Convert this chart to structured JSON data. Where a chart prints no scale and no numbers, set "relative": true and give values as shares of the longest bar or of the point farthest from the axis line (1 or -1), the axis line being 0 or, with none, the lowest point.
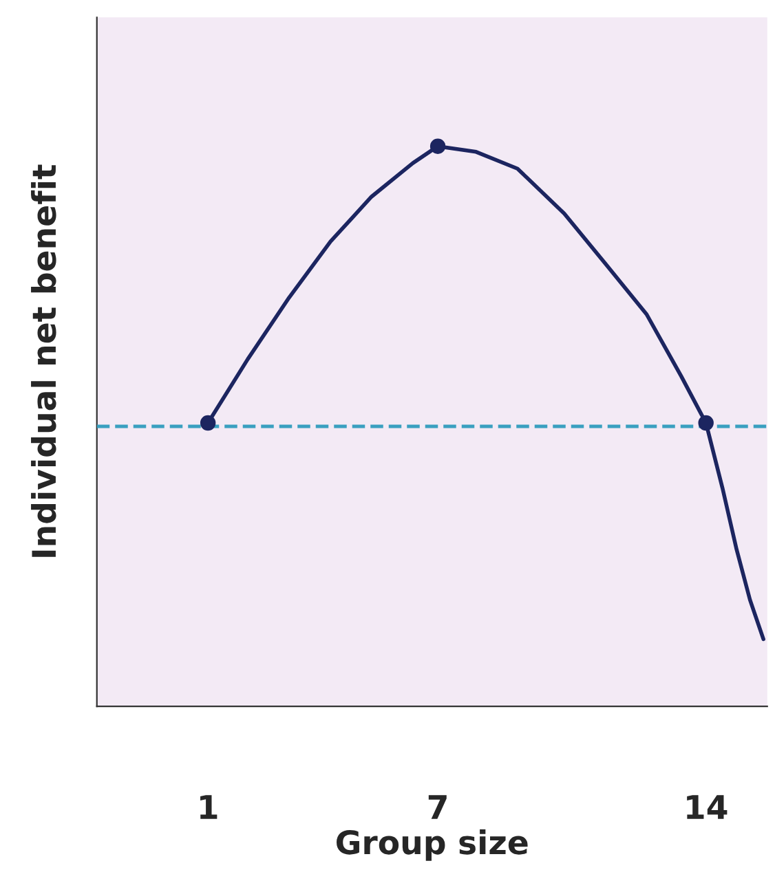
{
  "chart_data": {
    "type": "line",
    "relative": true,
    "xlabel": "Group size",
    "ylabel": "Individual net benefit",
    "xlim": [
      -1.9,
      15.6
    ],
    "xticks": [
      1,
      7,
      14
    ],
    "grid": false,
    "legend": false,
    "series": [
      {
        "color": "#1c2560",
        "marker": "none",
        "line_style": "solid",
        "x": [
          1,
          2.04,
          3.12,
          4.2,
          5.27,
          6.35,
          7,
          8,
          9.08,
          10.3,
          11.38,
          12.45,
          13.35,
          14,
          14.43,
          14.8,
          15.15,
          15.5
        ],
        "values": [
          0.506,
          0.62,
          0.73,
          0.83,
          0.91,
          0.97,
          1.0,
          0.99,
          0.96,
          0.88,
          0.79,
          0.7,
          0.59,
          0.506,
          0.39,
          0.28,
          0.19,
          0.12
        ]
      },
      {
        "type": "scatter",
        "color": "#1c2560",
        "marker": "circle",
        "x": [
          1,
          7,
          14
        ],
        "values": [
          0.506,
          1.0,
          0.506
        ]
      }
    ],
    "ref_lines": [
      {
        "axis": "y",
        "value": 0.5,
        "color": "#3aa0c0",
        "line_style": "dashed"
      }
    ]
  }
}
